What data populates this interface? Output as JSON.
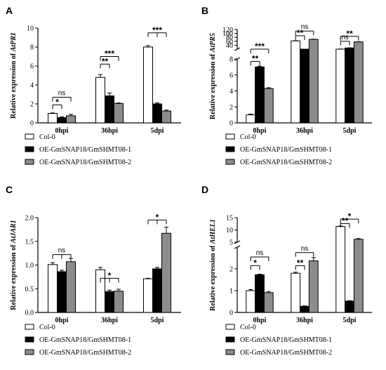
{
  "legend": [
    "Col-0",
    "OE-GmSNAP18/GmSHMT08-1",
    "OE-GmSNAP18/GmSHMT08-2"
  ],
  "colors": {
    "s1": "#ffffff",
    "s2": "#000000",
    "s3": "#8c8c8c",
    "stroke": "#000000"
  },
  "chart_data": [
    {
      "panel": "A",
      "type": "bar",
      "categories": [
        "0hpi",
        "36hpi",
        "5dpi"
      ],
      "ylabel_prefix": "Relative expression of ",
      "ylabel_gene": "AtPR1",
      "ylim": [
        0,
        10
      ],
      "yticks": [
        0,
        2,
        4,
        6,
        8,
        10
      ],
      "tick_labels": [
        "0",
        "2",
        "4",
        "6",
        "8",
        "10"
      ],
      "series": [
        {
          "name": "Col-0",
          "values": [
            1.0,
            4.8,
            8.0
          ],
          "errors": [
            0.05,
            0.3,
            0.15
          ]
        },
        {
          "name": "OE-GmSNAP18/GmSHMT08-1",
          "values": [
            0.55,
            2.85,
            2.0
          ],
          "errors": [
            0.08,
            0.3,
            0.1
          ]
        },
        {
          "name": "OE-GmSNAP18/GmSHMT08-2",
          "values": [
            0.75,
            2.05,
            1.25
          ],
          "errors": [
            0.15,
            0.05,
            0.1
          ]
        }
      ],
      "significance": [
        {
          "group": 0,
          "label": "*",
          "pair": 1,
          "h": 1.9
        },
        {
          "group": 0,
          "label": "ns",
          "pair": 2,
          "h": 2.7
        },
        {
          "group": 1,
          "label": "**",
          "pair": 1,
          "h": 6.2
        },
        {
          "group": 1,
          "label": "***",
          "pair": 2,
          "h": 7.0
        },
        {
          "group": 2,
          "label": "***",
          "pair": 12,
          "h": 9.5
        }
      ]
    },
    {
      "panel": "B",
      "type": "bar",
      "categories": [
        "0hpi",
        "36hpi",
        "5dpi"
      ],
      "ylabel_prefix": "Relative expression of ",
      "ylabel_gene": "AtPR5",
      "broken_axis": true,
      "lower_ylim": [
        0,
        8
      ],
      "lower_yticks": [
        0,
        2,
        4,
        6,
        8
      ],
      "upper_ylim": [
        20,
        120
      ],
      "upper_yticks": [
        20,
        40,
        60,
        80,
        100,
        120
      ],
      "tick_labels_lower": [
        "0",
        "2",
        "4",
        "6",
        "8"
      ],
      "tick_labels_upper": [
        "40",
        "60",
        "80",
        "100",
        "120"
      ],
      "series": [
        {
          "name": "Col-0",
          "values": [
            1.0,
            62,
            20
          ],
          "errors": [
            0.1,
            1.5,
            1
          ]
        },
        {
          "name": "OE-GmSNAP18/GmSHMT08-1",
          "values": [
            7.0,
            18,
            26
          ],
          "errors": [
            0.1,
            1,
            1
          ]
        },
        {
          "name": "OE-GmSNAP18/GmSHMT08-2",
          "values": [
            4.3,
            70,
            57
          ],
          "errors": [
            0.1,
            1,
            1
          ]
        }
      ],
      "significance": [
        {
          "group": 0,
          "label": "**",
          "pair": 1,
          "h": 7.7,
          "part": "lower"
        },
        {
          "group": 0,
          "label": "***",
          "pair": 2,
          "h": 8.6,
          "part": "lower"
        },
        {
          "group": 1,
          "label": "**",
          "pair": 1,
          "h": 88,
          "part": "upper"
        },
        {
          "group": 1,
          "label": "ns",
          "pair": 2,
          "h": 112,
          "part": "upper"
        },
        {
          "group": 2,
          "label": "ns",
          "pair": 1,
          "h": 60,
          "part": "upper"
        },
        {
          "group": 2,
          "label": "**",
          "pair": 2,
          "h": 85,
          "part": "upper"
        }
      ]
    },
    {
      "panel": "C",
      "type": "bar",
      "categories": [
        "0hpi",
        "36hpi",
        "5dpi"
      ],
      "ylabel_prefix": "Relative expression of ",
      "ylabel_gene": "AtJAR1",
      "ylim": [
        0,
        2.0
      ],
      "yticks": [
        0,
        0.5,
        1.0,
        1.5,
        2.0
      ],
      "tick_labels": [
        "0.0",
        "0.5",
        "1.0",
        "1.5",
        "2.0"
      ],
      "series": [
        {
          "name": "Col-0",
          "values": [
            1.01,
            0.9,
            0.71
          ],
          "errors": [
            0.04,
            0.05,
            0.01
          ]
        },
        {
          "name": "OE-GmSNAP18/GmSHMT08-1",
          "values": [
            0.86,
            0.44,
            0.92
          ],
          "errors": [
            0.03,
            0.03,
            0.03
          ]
        },
        {
          "name": "OE-GmSNAP18/GmSHMT08-2",
          "values": [
            1.07,
            0.45,
            1.67
          ],
          "errors": [
            0.07,
            0.04,
            0.13
          ]
        }
      ],
      "significance": [
        {
          "group": 0,
          "label": "ns",
          "pair": 12,
          "h": 1.22
        },
        {
          "group": 1,
          "label": "*",
          "pair": 12,
          "h": 0.72
        },
        {
          "group": 2,
          "label": "*",
          "pair": 12,
          "h": 1.95
        }
      ]
    },
    {
      "panel": "D",
      "type": "bar",
      "categories": [
        "0hpi",
        "36hpi",
        "5dpi"
      ],
      "ylabel_prefix": "Relative expression of ",
      "ylabel_gene": "AtHEL1",
      "broken_axis": true,
      "lower_ylim": [
        0,
        3
      ],
      "lower_yticks": [
        0,
        1,
        2,
        3
      ],
      "upper_ylim": [
        5,
        15
      ],
      "upper_yticks": [
        5,
        10,
        15
      ],
      "tick_labels_lower": [
        "0",
        "1",
        "2"
      ],
      "tick_labels_upper": [
        "5",
        "10",
        "15"
      ],
      "series": [
        {
          "name": "Col-0",
          "values": [
            1.0,
            1.8,
            11.4
          ],
          "errors": [
            0.05,
            0.05,
            0.2
          ]
        },
        {
          "name": "OE-GmSNAP18/GmSHMT08-1",
          "values": [
            1.73,
            0.28,
            0.52
          ],
          "errors": [
            0.03,
            0.02,
            0.02
          ]
        },
        {
          "name": "OE-GmSNAP18/GmSHMT08-2",
          "values": [
            0.91,
            2.37,
            6.2
          ],
          "errors": [
            0.05,
            0.15,
            0.3
          ]
        }
      ],
      "significance": [
        {
          "group": 0,
          "label": "*",
          "pair": 1,
          "h": 2.15,
          "part": "lower"
        },
        {
          "group": 0,
          "label": "ns",
          "pair": 2,
          "h": 2.55,
          "part": "lower"
        },
        {
          "group": 1,
          "label": "**",
          "pair": 1,
          "h": 2.15,
          "part": "lower"
        },
        {
          "group": 1,
          "label": "ns",
          "pair": 2,
          "h": 2.75,
          "part": "lower"
        },
        {
          "group": 2,
          "label": "**",
          "pair": 1,
          "h": 12.6,
          "part": "upper"
        },
        {
          "group": 2,
          "label": "*",
          "pair": 2,
          "h": 14.4,
          "part": "upper"
        }
      ]
    }
  ]
}
